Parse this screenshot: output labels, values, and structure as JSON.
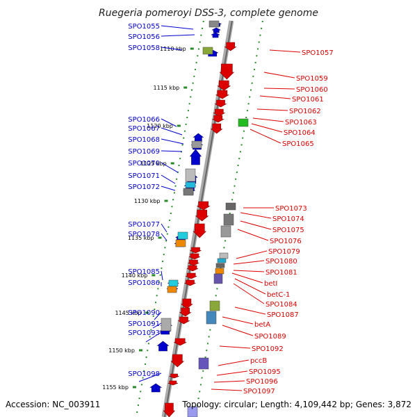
{
  "title": "Ruegeria pomeroyi DSS-3, complete genome",
  "accession": "Accession: NC_003911",
  "topology": "Topology: circular; Length: 4,109,442 bp; Genes: 3,872",
  "kbp_ticks": [
    "1110 kbp",
    "1115 kbp",
    "1120 kbp",
    "1125 kbp",
    "1130 kbp",
    "1135 kbp",
    "1140 kbp",
    "1145 kbp",
    "1150 kbp",
    "1155 kbp"
  ],
  "colors": {
    "reverse": "#0000cc",
    "forward": "#dd0000",
    "backbone": "#888888",
    "tickline": "#2a8a2a"
  },
  "left_labels": [
    "SPO1055",
    "SPO1056",
    "SPO1058",
    "SPO1066",
    "SPO1067",
    "SPO1068",
    "SPO1069",
    "SPO1070",
    "SPO1071",
    "SPO1072",
    "SPO1077",
    "SPO1078",
    "SPO1085",
    "SPO1086",
    "SPO1090",
    "SPO1091",
    "SPO1093",
    "SPO1098"
  ],
  "right_labels": [
    "SPO1057",
    "SPO1059",
    "SPO1060",
    "SPO1061",
    "SPO1062",
    "SPO1063",
    "SPO1064",
    "SPO1065",
    "SPO1073",
    "SPO1074",
    "SPO1075",
    "SPO1076",
    "SPO1079",
    "SPO1080",
    "SPO1081",
    "betI",
    "betC-1",
    "SPO1084",
    "SPO1087",
    "betA",
    "SPO1089",
    "SPO1092",
    "pccB",
    "SPO1095",
    "SPO1096",
    "SPO1097"
  ]
}
